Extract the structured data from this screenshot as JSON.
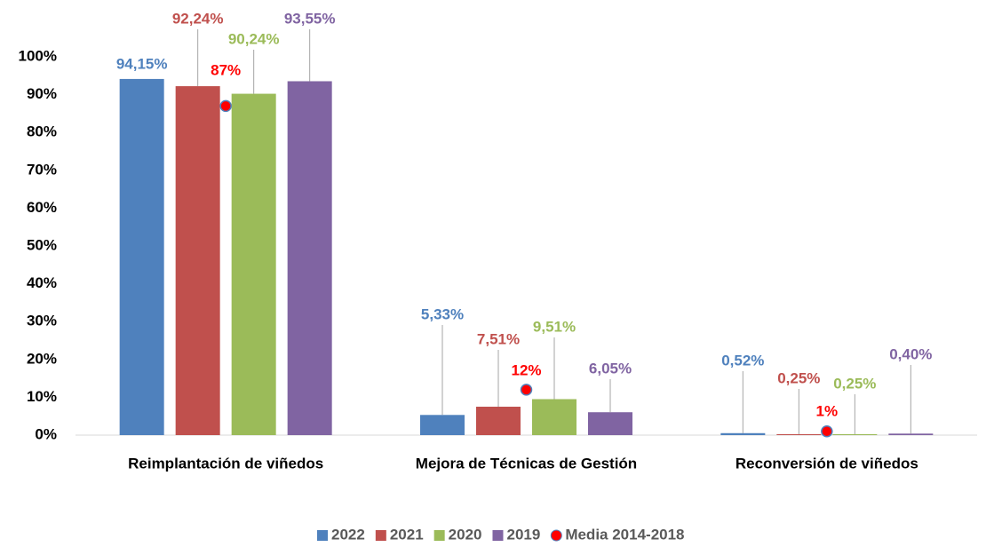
{
  "chart_data": {
    "type": "bar",
    "categories": [
      "Reimplantación de viñedos",
      "Mejora de Técnicas de Gestión",
      "Reconversión de viñedos"
    ],
    "series": [
      {
        "name": "2022",
        "color": "#4f81bd",
        "values": [
          94.15,
          5.33,
          0.52
        ],
        "value_labels": [
          "94,15%",
          "5,33%",
          "0,52%"
        ]
      },
      {
        "name": "2021",
        "color": "#c0504d",
        "values": [
          92.24,
          7.51,
          0.25
        ],
        "value_labels": [
          "92,24%",
          "7,51%",
          "0,25%"
        ]
      },
      {
        "name": "2020",
        "color": "#9bbb59",
        "values": [
          90.24,
          9.51,
          0.25
        ],
        "value_labels": [
          "90,24%",
          "9,51%",
          "0,25%"
        ]
      },
      {
        "name": "2019",
        "color": "#8064a2",
        "values": [
          93.55,
          6.05,
          0.4
        ],
        "value_labels": [
          "93,55%",
          "6,05%",
          "0,40%"
        ]
      }
    ],
    "average": {
      "name": "Media 2014-2018",
      "color": "#ff0000",
      "values": [
        87,
        12,
        1
      ],
      "value_labels": [
        "87%",
        "12%",
        "1%"
      ]
    },
    "ylim": [
      0,
      100
    ],
    "yticks": [
      {
        "value": 0,
        "label": "0%"
      },
      {
        "value": 10,
        "label": "10%"
      },
      {
        "value": 20,
        "label": "20%"
      },
      {
        "value": 30,
        "label": "30%"
      },
      {
        "value": 40,
        "label": "40%"
      },
      {
        "value": 50,
        "label": "50%"
      },
      {
        "value": 60,
        "label": "60%"
      },
      {
        "value": 70,
        "label": "70%"
      },
      {
        "value": 80,
        "label": "80%"
      },
      {
        "value": 90,
        "label": "90%"
      },
      {
        "value": 100,
        "label": "100%"
      }
    ],
    "grid": false,
    "legend": "bottom"
  }
}
